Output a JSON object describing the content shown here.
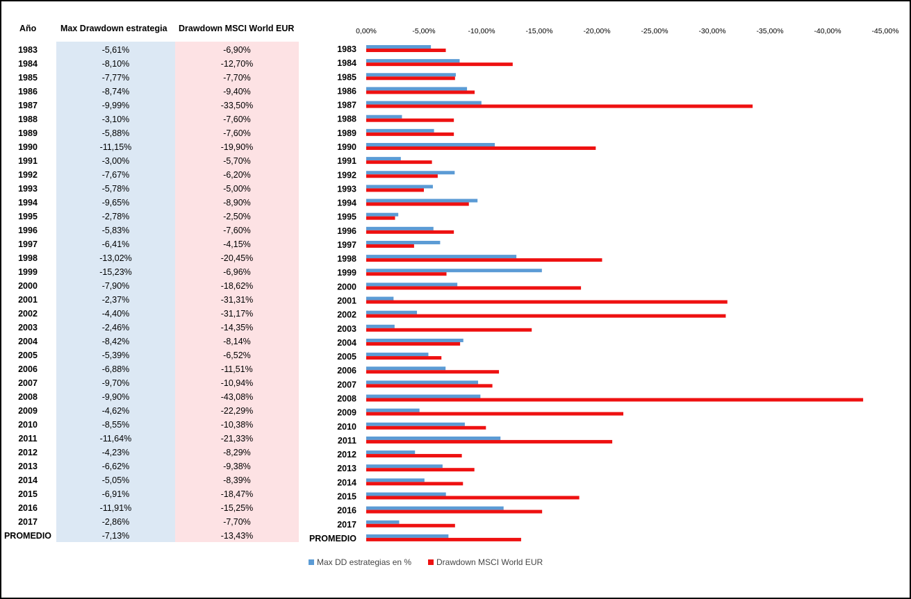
{
  "table": {
    "headers": {
      "year": "Año",
      "strategy": "Max Drawdown estrategia",
      "msci": "Drawdown MSCI World EUR"
    },
    "rows": [
      {
        "year": "1983",
        "strategy": "-5,61%",
        "msci": "-6,90%"
      },
      {
        "year": "1984",
        "strategy": "-8,10%",
        "msci": "-12,70%"
      },
      {
        "year": "1985",
        "strategy": "-7,77%",
        "msci": "-7,70%"
      },
      {
        "year": "1986",
        "strategy": "-8,74%",
        "msci": "-9,40%"
      },
      {
        "year": "1987",
        "strategy": "-9,99%",
        "msci": "-33,50%"
      },
      {
        "year": "1988",
        "strategy": "-3,10%",
        "msci": "-7,60%"
      },
      {
        "year": "1989",
        "strategy": "-5,88%",
        "msci": "-7,60%"
      },
      {
        "year": "1990",
        "strategy": "-11,15%",
        "msci": "-19,90%"
      },
      {
        "year": "1991",
        "strategy": "-3,00%",
        "msci": "-5,70%"
      },
      {
        "year": "1992",
        "strategy": "-7,67%",
        "msci": "-6,20%"
      },
      {
        "year": "1993",
        "strategy": "-5,78%",
        "msci": "-5,00%"
      },
      {
        "year": "1994",
        "strategy": "-9,65%",
        "msci": "-8,90%"
      },
      {
        "year": "1995",
        "strategy": "-2,78%",
        "msci": "-2,50%"
      },
      {
        "year": "1996",
        "strategy": "-5,83%",
        "msci": "-7,60%"
      },
      {
        "year": "1997",
        "strategy": "-6,41%",
        "msci": "-4,15%"
      },
      {
        "year": "1998",
        "strategy": "-13,02%",
        "msci": "-20,45%"
      },
      {
        "year": "1999",
        "strategy": "-15,23%",
        "msci": "-6,96%"
      },
      {
        "year": "2000",
        "strategy": "-7,90%",
        "msci": "-18,62%"
      },
      {
        "year": "2001",
        "strategy": "-2,37%",
        "msci": "-31,31%"
      },
      {
        "year": "2002",
        "strategy": "-4,40%",
        "msci": "-31,17%"
      },
      {
        "year": "2003",
        "strategy": "-2,46%",
        "msci": "-14,35%"
      },
      {
        "year": "2004",
        "strategy": "-8,42%",
        "msci": "-8,14%"
      },
      {
        "year": "2005",
        "strategy": "-5,39%",
        "msci": "-6,52%"
      },
      {
        "year": "2006",
        "strategy": "-6,88%",
        "msci": "-11,51%"
      },
      {
        "year": "2007",
        "strategy": "-9,70%",
        "msci": "-10,94%"
      },
      {
        "year": "2008",
        "strategy": "-9,90%",
        "msci": "-43,08%"
      },
      {
        "year": "2009",
        "strategy": "-4,62%",
        "msci": "-22,29%"
      },
      {
        "year": "2010",
        "strategy": "-8,55%",
        "msci": "-10,38%"
      },
      {
        "year": "2011",
        "strategy": "-11,64%",
        "msci": "-21,33%"
      },
      {
        "year": "2012",
        "strategy": "-4,23%",
        "msci": "-8,29%"
      },
      {
        "year": "2013",
        "strategy": "-6,62%",
        "msci": "-9,38%"
      },
      {
        "year": "2014",
        "strategy": "-5,05%",
        "msci": "-8,39%"
      },
      {
        "year": "2015",
        "strategy": "-6,91%",
        "msci": "-18,47%"
      },
      {
        "year": "2016",
        "strategy": "-11,91%",
        "msci": "-15,25%"
      },
      {
        "year": "2017",
        "strategy": "-2,86%",
        "msci": "-7,70%"
      },
      {
        "year": "PROMEDIO",
        "strategy": "-7,13%",
        "msci": "-13,43%"
      }
    ],
    "colors": {
      "strategy_bg": "#dce8f4",
      "msci_bg": "#fde2e4"
    }
  },
  "chart_data": {
    "type": "bar",
    "orientation": "horizontal",
    "categories": [
      "1983",
      "1984",
      "1985",
      "1986",
      "1987",
      "1988",
      "1989",
      "1990",
      "1991",
      "1992",
      "1993",
      "1994",
      "1995",
      "1996",
      "1997",
      "1998",
      "1999",
      "2000",
      "2001",
      "2002",
      "2003",
      "2004",
      "2005",
      "2006",
      "2007",
      "2008",
      "2009",
      "2010",
      "2011",
      "2012",
      "2013",
      "2014",
      "2015",
      "2016",
      "2017",
      "PROMEDIO"
    ],
    "series": [
      {
        "name": "Max DD estrategias en %",
        "color": "#5b9bd5",
        "values": [
          -5.61,
          -8.1,
          -7.77,
          -8.74,
          -9.99,
          -3.1,
          -5.88,
          -11.15,
          -3.0,
          -7.67,
          -5.78,
          -9.65,
          -2.78,
          -5.83,
          -6.41,
          -13.02,
          -15.23,
          -7.9,
          -2.37,
          -4.4,
          -2.46,
          -8.42,
          -5.39,
          -6.88,
          -9.7,
          -9.9,
          -4.62,
          -8.55,
          -11.64,
          -4.23,
          -6.62,
          -5.05,
          -6.91,
          -11.91,
          -2.86,
          -7.13
        ]
      },
      {
        "name": "Drawdown MSCI World EUR",
        "color": "#ee1111",
        "values": [
          -6.9,
          -12.7,
          -7.7,
          -9.4,
          -33.5,
          -7.6,
          -7.6,
          -19.9,
          -5.7,
          -6.2,
          -5.0,
          -8.9,
          -2.5,
          -7.6,
          -4.15,
          -20.45,
          -6.96,
          -18.62,
          -31.31,
          -31.17,
          -14.35,
          -8.14,
          -6.52,
          -11.51,
          -10.94,
          -43.08,
          -22.29,
          -10.38,
          -21.33,
          -8.29,
          -9.38,
          -8.39,
          -18.47,
          -15.25,
          -7.7,
          -13.43
        ]
      }
    ],
    "x_ticks": [
      "0,00%",
      "-5,00%",
      "-10,00%",
      "-15,00%",
      "-20,00%",
      "-25,00%",
      "-30,00%",
      "-35,00%",
      "-40,00%",
      "-45,00%"
    ],
    "xlim": [
      0,
      -45
    ],
    "x_reversed": true,
    "x_axis_position": "top",
    "grid": false,
    "legend_position": "bottom",
    "title": "",
    "xlabel": "",
    "ylabel": ""
  }
}
